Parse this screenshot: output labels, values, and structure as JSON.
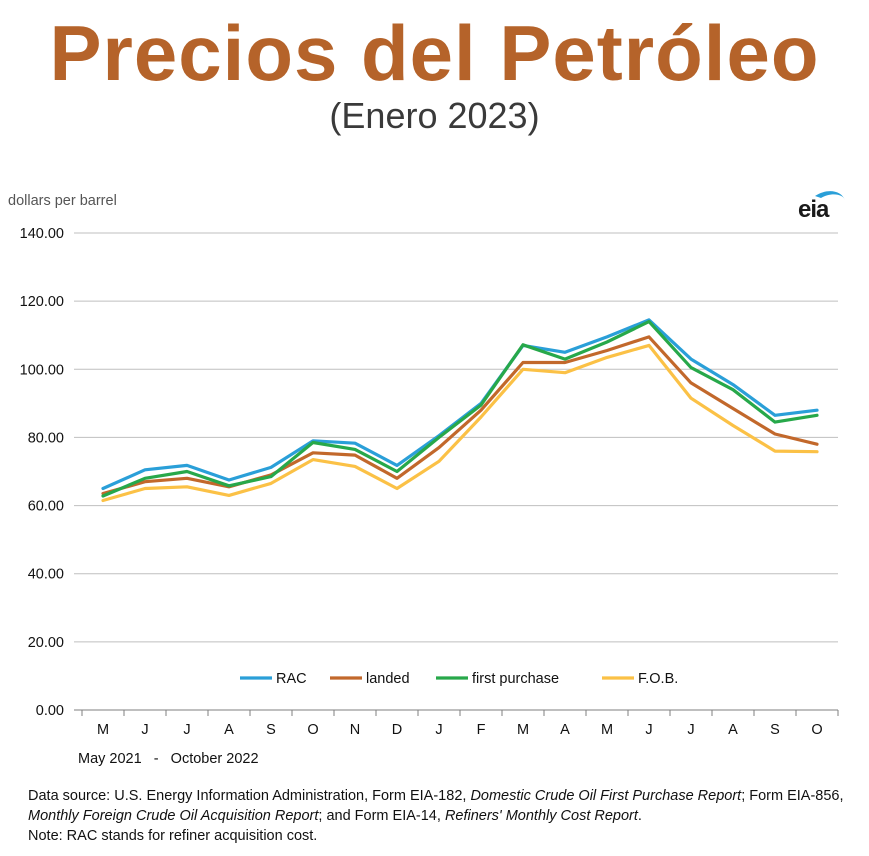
{
  "header": {
    "title": "Precios del Petróleo",
    "subtitle": "(Enero 2023)"
  },
  "colors": {
    "title": "#b5632a",
    "RAC": "#2a9fd8",
    "landed": "#c2682b",
    "first_purchase": "#27a84a",
    "FOB": "#fbc146",
    "grid": "#bfbfbf"
  },
  "logo": {
    "text": "eia"
  },
  "chart_data": {
    "type": "line",
    "ylabel": "dollars per barrel",
    "xlabel": "May 2021   -   October 2022",
    "ylim": [
      0,
      140
    ],
    "yticks": [
      "0.00",
      "20.00",
      "40.00",
      "60.00",
      "80.00",
      "100.00",
      "120.00",
      "140.00"
    ],
    "categories": [
      "M",
      "J",
      "J",
      "A",
      "S",
      "O",
      "N",
      "D",
      "J",
      "F",
      "M",
      "A",
      "M",
      "J",
      "J",
      "A",
      "S",
      "O"
    ],
    "grid": true,
    "legend_position": "bottom",
    "series": [
      {
        "name": "RAC",
        "key": "RAC",
        "values": [
          65.0,
          70.5,
          71.8,
          67.5,
          71.2,
          79.0,
          78.3,
          71.8,
          80.5,
          90.0,
          107.0,
          105.0,
          109.5,
          114.5,
          103.0,
          95.5,
          86.5,
          88.0
        ]
      },
      {
        "name": "landed",
        "key": "landed",
        "values": [
          63.5,
          67.0,
          68.0,
          65.5,
          69.0,
          75.5,
          74.8,
          68.0,
          77.0,
          88.0,
          102.0,
          102.0,
          105.5,
          109.5,
          96.0,
          88.5,
          81.0,
          78.0
        ]
      },
      {
        "name": "first purchase",
        "key": "first_purchase",
        "values": [
          62.8,
          68.0,
          70.0,
          65.8,
          68.5,
          78.5,
          76.5,
          70.0,
          80.0,
          89.5,
          107.2,
          103.0,
          108.0,
          114.0,
          100.5,
          94.0,
          84.5,
          86.5
        ]
      },
      {
        "name": "F.O.B.",
        "key": "FOB",
        "values": [
          61.5,
          65.0,
          65.5,
          63.0,
          66.5,
          73.5,
          71.5,
          65.0,
          73.0,
          86.0,
          100.0,
          99.0,
          103.5,
          107.0,
          91.5,
          83.5,
          76.0,
          75.8
        ]
      }
    ]
  },
  "source": {
    "part1": "Data source: U.S. Energy Information Administration,  Form EIA-182, ",
    "italic1": "Domestic Crude Oil First Purchase Report",
    "part2": "; Form EIA-856, ",
    "italic2": "Monthly Foreign Crude Oil Acquisition Report",
    "part3": "; and Form EIA-14, ",
    "italic3": "Refiners' Monthly Cost Report",
    "part4": ".",
    "note": "Note: RAC stands for refiner acquisition cost."
  }
}
